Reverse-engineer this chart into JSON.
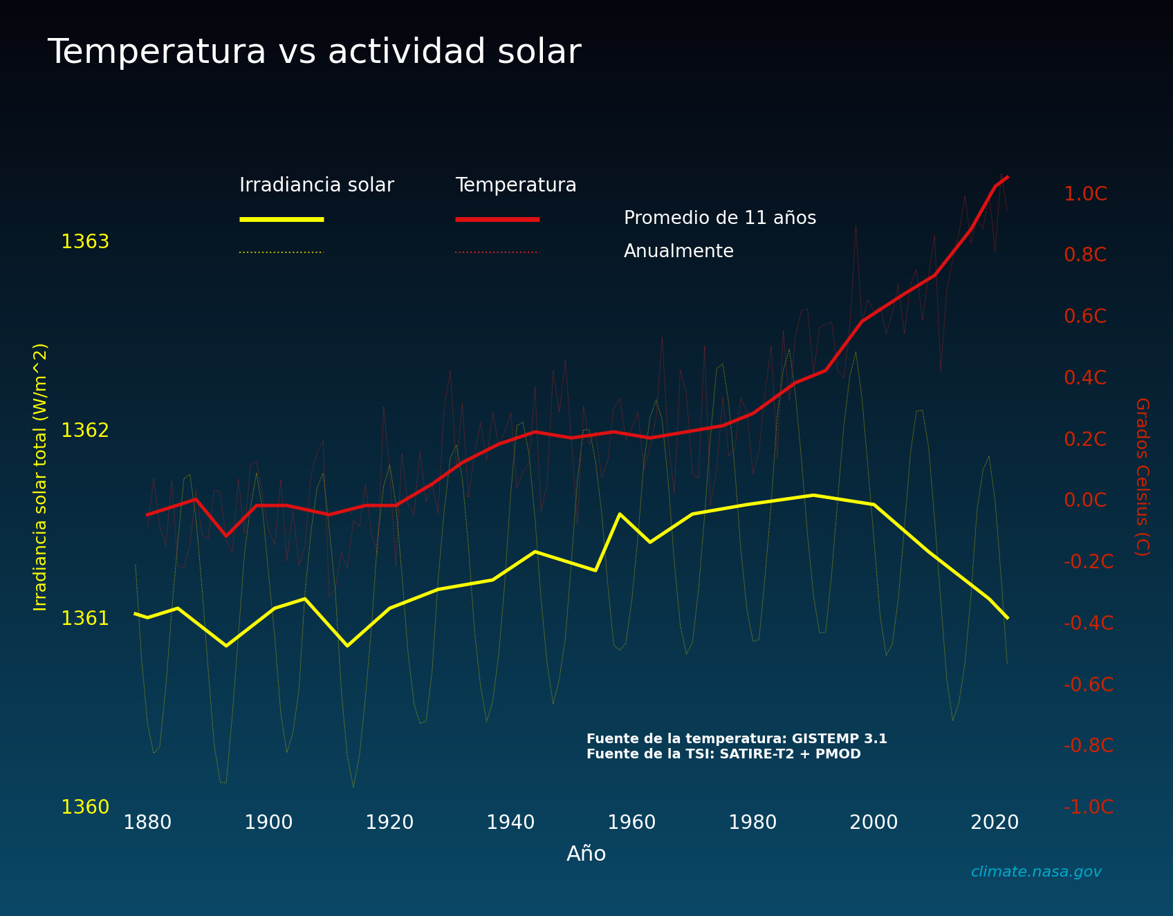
{
  "title": "Temperatura vs actividad solar",
  "xlabel": "Año",
  "ylabel_left": "Irradiancia solar total (W/m^2)",
  "ylabel_right": "Grados Celsius (C)",
  "source_text": "Fuente de la temperatura: GISTEMP 3.1\nFuente de la TSI: SATIRE-T2 + PMOD",
  "watermark": "climate.nasa.gov",
  "bg_color_top": "#000000",
  "bg_color_bottom": "#0a4060",
  "title_color": "#ffffff",
  "left_tick_color": "#ffff00",
  "right_tick_color": "#cc2200",
  "xlabel_color": "#ffffff",
  "ylabel_left_color": "#ffff00",
  "ylabel_right_color": "#cc2200",
  "source_color": "#ffffff",
  "watermark_color": "#00aacc",
  "left_ylim": [
    1360.0,
    1363.5
  ],
  "right_ylim": [
    -1.0,
    1.15
  ],
  "xlim": [
    1875,
    2030
  ],
  "left_yticks": [
    1360,
    1361,
    1362,
    1363
  ],
  "right_yticks": [
    -1.0,
    -0.8,
    -0.6,
    -0.4,
    -0.2,
    0.0,
    0.2,
    0.4,
    0.6,
    0.8,
    1.0
  ],
  "xticks": [
    1880,
    1900,
    1920,
    1940,
    1960,
    1980,
    2000,
    2020
  ],
  "legend_solar_label": "Irradiancia solar",
  "legend_temp_label": "Temperatura",
  "legend_smooth_label": "Promedio de 11 años",
  "legend_annual_label": "Anualmente",
  "solar_smooth_color": "#ffff00",
  "solar_annual_color": "#bbbb00",
  "temp_smooth_color": "#dd1111",
  "temp_annual_color": "#cc2222"
}
